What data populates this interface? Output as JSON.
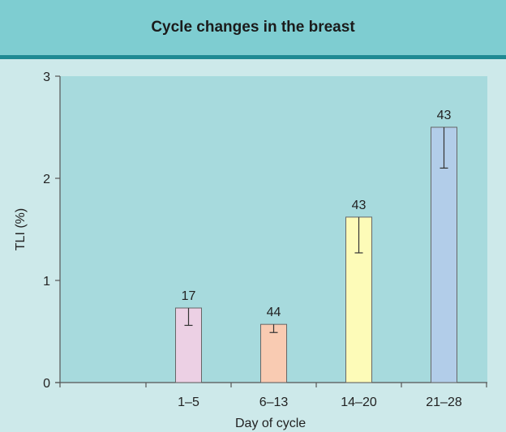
{
  "chart_data": {
    "type": "bar",
    "title": "Cycle changes in the breast",
    "xlabel": "Day of cycle",
    "ylabel": "TLI (%)",
    "ylim": [
      0,
      3
    ],
    "yticks": [
      "0",
      "1",
      "2",
      "3"
    ],
    "grid": false,
    "legend": "none",
    "categories": [
      "1–5",
      "6–13",
      "14–20",
      "21–28"
    ],
    "values": [
      0.73,
      0.57,
      1.62,
      2.5
    ],
    "error_low": [
      0.56,
      0.49,
      1.27,
      2.1
    ],
    "error_high": [
      0.73,
      0.57,
      1.62,
      2.5
    ],
    "bar_labels": [
      "17",
      "44",
      "43",
      "43"
    ],
    "bar_colors": [
      "#ecd0e4",
      "#f9cbb2",
      "#fdfbb8",
      "#b2cde9"
    ],
    "plot_background": "#a7dadd",
    "page_background": "#cde9ea",
    "header_background": "#7ecdd1",
    "header_rule_color": "#1e8a93"
  }
}
